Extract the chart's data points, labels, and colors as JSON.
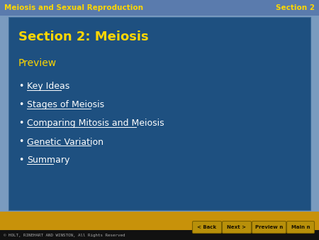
{
  "header_bg_color": "#5A7BAD",
  "header_text_left": "Meiosis and Sexual Reproduction",
  "header_text_right": "Section 2",
  "header_text_color": "#FFD700",
  "outer_bg": "#C8920A",
  "sky_color": "#7A9BBF",
  "desert_color": "#C8920A",
  "main_panel_bg": "#1E5080",
  "main_panel_border": "#4A7AA8",
  "section_title": "Section 2: Meiosis",
  "section_title_color": "#FFD700",
  "preview_label": "Preview",
  "preview_color": "#FFD700",
  "bullet_items": [
    "Key Ideas",
    "Stages of Meiosis",
    "Comparing Mitosis and Meiosis",
    "Genetic Variation",
    "Summary"
  ],
  "bullet_color": "#FFFFFF",
  "footer_bg": "#111111",
  "footer_text": "© HOLT, RINEHART AND WINSTON, All Rights Reserved",
  "footer_color": "#AAAAAA",
  "nav_buttons": [
    "< Back",
    "Next >",
    "Preview n",
    "Main n"
  ],
  "nav_btn_bg": "#B8900A",
  "nav_btn_border": "#7A6000",
  "bottom_bar_bg": "#C8920A",
  "figwidth": 4.5,
  "figheight": 3.38,
  "dpi": 100
}
